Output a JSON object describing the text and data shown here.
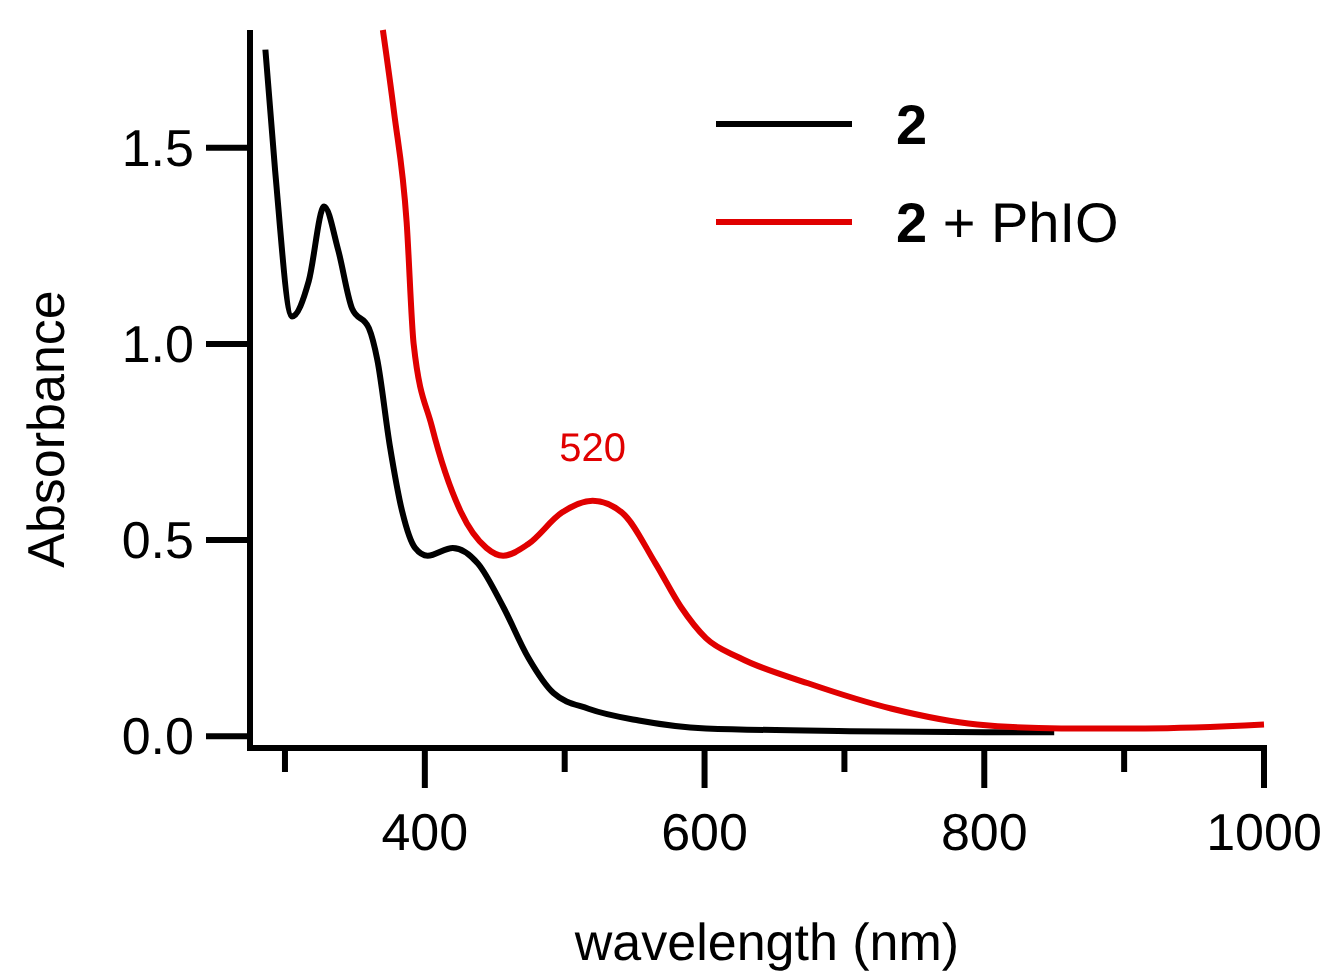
{
  "chart_data": {
    "type": "line",
    "xlabel": "wavelength (nm)",
    "ylabel": "Absorbance",
    "xlim": [
      275,
      1000
    ],
    "ylim": [
      -0.03,
      1.8
    ],
    "xticks": [
      {
        "value": 300,
        "label": null
      },
      400,
      {
        "value": 500,
        "label": null
      },
      600,
      {
        "value": 700,
        "label": null
      },
      800,
      {
        "value": 900,
        "label": null
      },
      1000
    ],
    "yticks": [
      {
        "value": 0,
        "label": "0.0"
      },
      0.5,
      {
        "value": 1,
        "label": "1.0"
      },
      1.5
    ],
    "grid": false,
    "legend": "top right",
    "marker": "none",
    "line_style": "solid",
    "annotations": [
      {
        "text": "520",
        "x": 520,
        "y": 0.6
      }
    ],
    "series": [
      {
        "name": "2",
        "color": "#000000",
        "x": [
          286,
          293,
          305,
          317,
          328,
          338,
          348,
          360,
          366,
          375,
          384,
          393,
          402,
          420,
          438,
          456,
          474,
          492,
          517,
          553,
          601,
          704,
          825,
          850
        ],
        "values": [
          1.75,
          1.44,
          1.07,
          1.16,
          1.35,
          1.24,
          1.09,
          1.04,
          0.96,
          0.74,
          0.57,
          0.48,
          0.46,
          0.48,
          0.44,
          0.33,
          0.2,
          0.11,
          0.07,
          0.04,
          0.02,
          0.013,
          0.01,
          0.01
        ]
      },
      {
        "name": "2 + PhIO",
        "color": "#e00000",
        "x": [
          370,
          378,
          387,
          392,
          405,
          426,
          444,
          456,
          474,
          498,
          520,
          541,
          565,
          583,
          601,
          625,
          674,
          734,
          795,
          855,
          915,
          1000
        ],
        "values": [
          1.8,
          1.59,
          1.31,
          1.0,
          0.79,
          0.57,
          0.48,
          0.46,
          0.49,
          0.57,
          0.6,
          0.57,
          0.44,
          0.33,
          0.25,
          0.2,
          0.135,
          0.07,
          0.03,
          0.02,
          0.02,
          0.03
        ]
      }
    ]
  }
}
